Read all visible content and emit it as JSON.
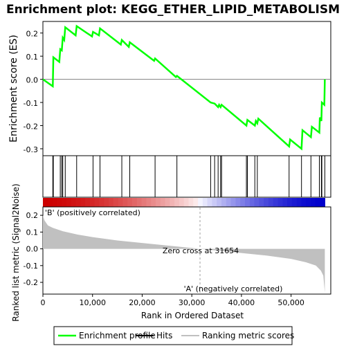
{
  "chart_data": {
    "type": "line",
    "title": "Enrichment plot: KEGG_ETHER_LIPID_METABOLISM",
    "x_axis": {
      "label": "Rank in Ordered Dataset",
      "range": [
        0,
        58000
      ],
      "ticks": [
        0,
        10000,
        20000,
        30000,
        40000,
        50000
      ],
      "tick_labels": [
        "0",
        "10,000",
        "20,000",
        "30,000",
        "40,000",
        "50,000"
      ]
    },
    "es_panel": {
      "ylabel": "Enrichment score (ES)",
      "ylim": [
        -0.33,
        0.25
      ],
      "yticks": [
        0.2,
        0.1,
        0.0,
        -0.1,
        -0.2,
        -0.3
      ],
      "ytick_labels": [
        "0.2",
        "0.1",
        "0.0",
        "-0.1",
        "-0.2",
        "-0.3"
      ],
      "color": "#00ff00",
      "profile": [
        [
          0,
          0.0
        ],
        [
          2000,
          -0.03
        ],
        [
          2100,
          0.095
        ],
        [
          3300,
          0.075
        ],
        [
          3500,
          0.13
        ],
        [
          3800,
          0.125
        ],
        [
          4000,
          0.18
        ],
        [
          4300,
          0.17
        ],
        [
          4500,
          0.225
        ],
        [
          6600,
          0.19
        ],
        [
          6800,
          0.23
        ],
        [
          9900,
          0.185
        ],
        [
          10100,
          0.205
        ],
        [
          11300,
          0.19
        ],
        [
          11500,
          0.22
        ],
        [
          15700,
          0.15
        ],
        [
          15900,
          0.17
        ],
        [
          17300,
          0.14
        ],
        [
          17500,
          0.16
        ],
        [
          22400,
          0.08
        ],
        [
          22600,
          0.09
        ],
        [
          26800,
          0.01
        ],
        [
          27000,
          0.015
        ],
        [
          33800,
          -0.1
        ],
        [
          34600,
          -0.105
        ],
        [
          35300,
          -0.12
        ],
        [
          35500,
          -0.11
        ],
        [
          35800,
          -0.12
        ],
        [
          36000,
          -0.11
        ],
        [
          41000,
          -0.2
        ],
        [
          41200,
          -0.175
        ],
        [
          42700,
          -0.2
        ],
        [
          42900,
          -0.18
        ],
        [
          43200,
          -0.19
        ],
        [
          43400,
          -0.17
        ],
        [
          49600,
          -0.29
        ],
        [
          49800,
          -0.26
        ],
        [
          52100,
          -0.3
        ],
        [
          52300,
          -0.22
        ],
        [
          54000,
          -0.25
        ],
        [
          54200,
          -0.205
        ],
        [
          55700,
          -0.23
        ],
        [
          55800,
          -0.165
        ],
        [
          56100,
          -0.18
        ],
        [
          56200,
          -0.1
        ],
        [
          56700,
          -0.11
        ],
        [
          56800,
          0.0
        ]
      ]
    },
    "hits": [
      2000,
      2100,
      3500,
      3800,
      4000,
      4500,
      6800,
      10100,
      11500,
      15900,
      17500,
      22600,
      27000,
      33800,
      34600,
      35300,
      35800,
      36000,
      41000,
      41200,
      42700,
      43200,
      49600,
      52100,
      54000,
      55700,
      56100,
      56200,
      56800
    ],
    "metric_panel": {
      "ylabel": "Ranked list metric (Signal2Noise)",
      "ylim": [
        -0.27,
        0.25
      ],
      "yticks": [
        0.2,
        0.1,
        0.0,
        -0.1,
        -0.2
      ],
      "ytick_labels": [
        "0.2",
        "0.1",
        "0.0",
        "-0.1",
        "-0.2"
      ],
      "curve": [
        [
          0,
          0.2
        ],
        [
          300,
          0.17
        ],
        [
          1000,
          0.14
        ],
        [
          2000,
          0.125
        ],
        [
          4000,
          0.105
        ],
        [
          7000,
          0.085
        ],
        [
          10000,
          0.07
        ],
        [
          15000,
          0.05
        ],
        [
          20000,
          0.035
        ],
        [
          25000,
          0.02
        ],
        [
          30000,
          0.005
        ],
        [
          31654,
          0.0
        ],
        [
          35000,
          -0.01
        ],
        [
          40000,
          -0.025
        ],
        [
          45000,
          -0.04
        ],
        [
          50000,
          -0.06
        ],
        [
          53000,
          -0.08
        ],
        [
          55000,
          -0.1
        ],
        [
          56000,
          -0.13
        ],
        [
          56500,
          -0.16
        ],
        [
          56800,
          -0.26
        ]
      ],
      "zero_cross_x": 31654,
      "zero_cross_label": "Zero cross at 31654",
      "pos_label": "'B' (positively correlated)",
      "neg_label": "'A' (negatively correlated)",
      "pos_color": "#cc0000",
      "neg_color": "#0000cc"
    },
    "legend": {
      "placement": "bottom",
      "items": [
        {
          "label": "Enrichment profile",
          "color": "#00ff00"
        },
        {
          "label": "Hits",
          "color": "#000000"
        },
        {
          "label": "Ranking metric scores",
          "color": "#c0c0c0"
        }
      ]
    }
  }
}
